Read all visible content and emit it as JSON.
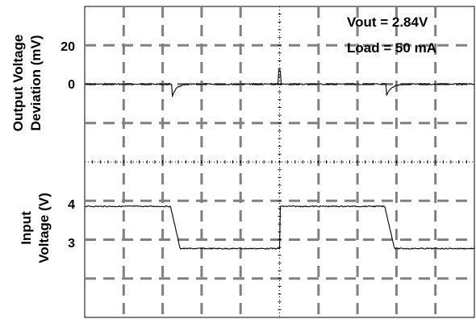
{
  "chart_data": {
    "type": "line",
    "background": "#ffffff",
    "grid": true,
    "grid_style": "dashed",
    "grid_color": "#808080",
    "trace_color": "#000000",
    "annotations": [
      "Vout = 2.84V",
      "Load = 50 mA"
    ],
    "annotation_position": "top-right",
    "upper": {
      "ylabel_lines": [
        "Output Voltage",
        "Deviation (mV)"
      ],
      "ticks": [
        {
          "value": 20,
          "label": "20"
        },
        {
          "value": 0,
          "label": "0"
        }
      ],
      "ylim": [
        -40,
        40
      ],
      "steps": [
        {
          "x": 0.0,
          "y": 0
        },
        {
          "x": 2.25,
          "y": 0,
          "dip": -6
        },
        {
          "x": 5.0,
          "y": 0,
          "spike": 7
        },
        {
          "x": 7.75,
          "y": 0,
          "dip": -6
        },
        {
          "x": 10.0,
          "y": 0
        }
      ]
    },
    "lower": {
      "ylabel_lines": [
        "Input",
        "Voltage (V)"
      ],
      "ticks": [
        {
          "value": 4,
          "label": "4"
        },
        {
          "value": 3,
          "label": "3"
        }
      ],
      "ylim": [
        1.5,
        5.0
      ],
      "steps": [
        {
          "x": 0.0,
          "y": 4
        },
        {
          "x": 2.2,
          "y": 4
        },
        {
          "x": 2.45,
          "y": 3.05
        },
        {
          "x": 5.0,
          "y": 3.05
        },
        {
          "x": 5.02,
          "y": 4
        },
        {
          "x": 7.7,
          "y": 4
        },
        {
          "x": 7.95,
          "y": 3.05
        },
        {
          "x": 10.0,
          "y": 3.05
        }
      ]
    },
    "xlim": [
      0,
      10
    ]
  }
}
